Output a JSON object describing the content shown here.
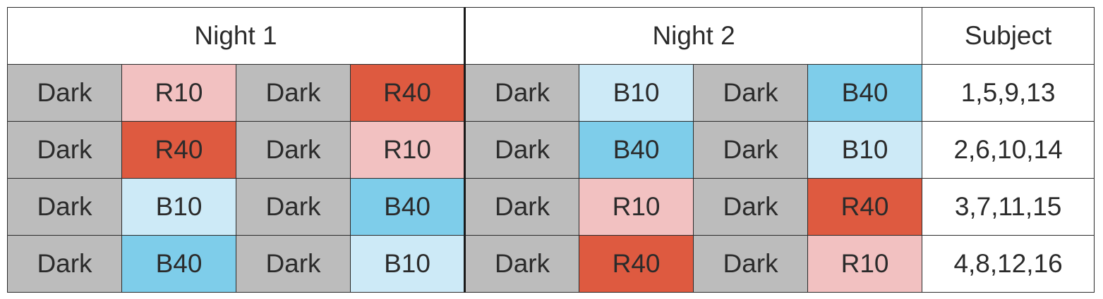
{
  "header": {
    "night1": "Night 1",
    "night2": "Night 2",
    "subject": "Subject"
  },
  "colors": {
    "Dark": "#bcbcbc",
    "R10": "#f2c1c1",
    "R40": "#de5a40",
    "B10": "#cdeaf7",
    "B40": "#7ecdea",
    "subject_bg": "#ffffff",
    "grid": "#2a2a2a"
  },
  "rows": [
    {
      "night1": [
        "Dark",
        "R10",
        "Dark",
        "R40"
      ],
      "night2": [
        "Dark",
        "B10",
        "Dark",
        "B40"
      ],
      "subject": "1,5,9,13"
    },
    {
      "night1": [
        "Dark",
        "R40",
        "Dark",
        "R10"
      ],
      "night2": [
        "Dark",
        "B40",
        "Dark",
        "B10"
      ],
      "subject": "2,6,10,14"
    },
    {
      "night1": [
        "Dark",
        "B10",
        "Dark",
        "B40"
      ],
      "night2": [
        "Dark",
        "R10",
        "Dark",
        "R40"
      ],
      "subject": "3,7,11,15"
    },
    {
      "night1": [
        "Dark",
        "B40",
        "Dark",
        "B10"
      ],
      "night2": [
        "Dark",
        "R40",
        "Dark",
        "R10"
      ],
      "subject": "4,8,12,16"
    }
  ]
}
